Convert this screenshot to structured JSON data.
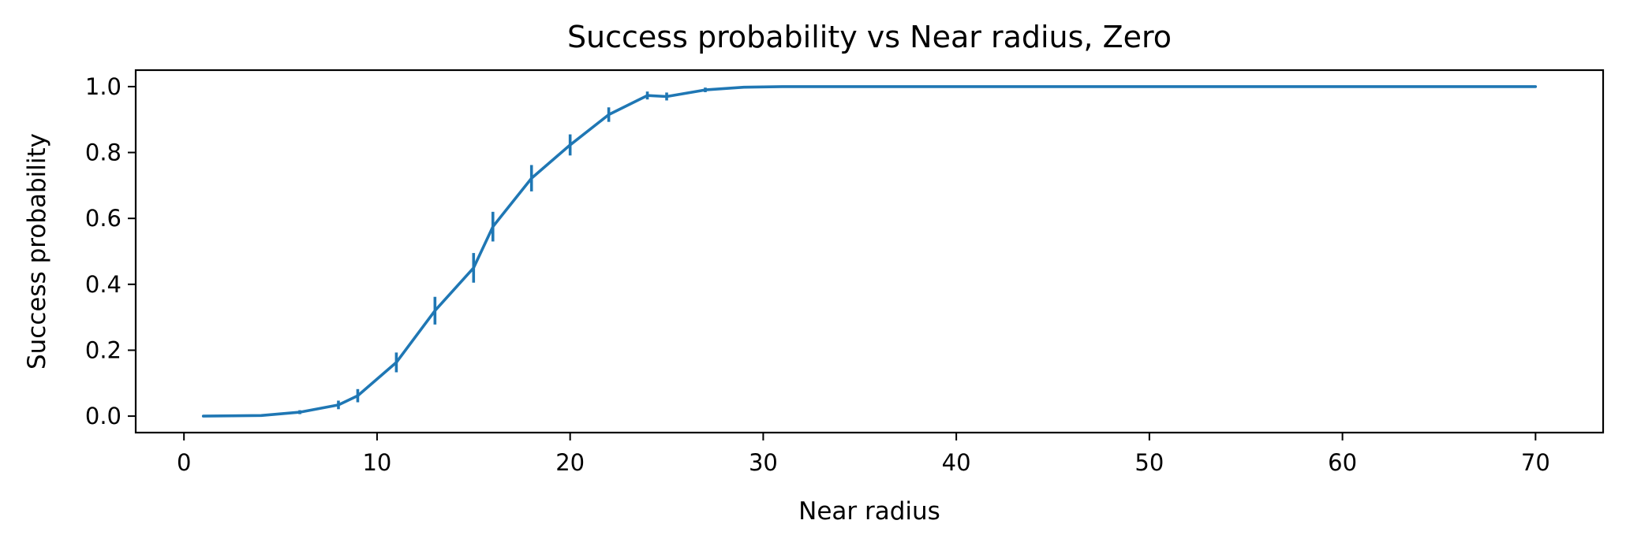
{
  "chart_data": {
    "type": "line",
    "title": "Success probability vs Near radius, Zero",
    "xlabel": "Near radius",
    "ylabel": "Success probability",
    "xlim": [
      -2.5,
      73.5
    ],
    "ylim": [
      -0.05,
      1.05
    ],
    "xticks": [
      0,
      10,
      20,
      30,
      40,
      50,
      60,
      70
    ],
    "yticks": [
      0.0,
      0.2,
      0.4,
      0.6,
      0.8,
      1.0
    ],
    "xtick_labels": [
      "0",
      "10",
      "20",
      "30",
      "40",
      "50",
      "60",
      "70"
    ],
    "ytick_labels": [
      "0.0",
      "0.2",
      "0.4",
      "0.6",
      "0.8",
      "1.0"
    ],
    "grid": false,
    "legend": "none",
    "series": [
      {
        "color": "#1f77b4",
        "x": [
          1,
          4,
          6,
          8,
          9,
          11,
          13,
          15,
          16,
          18,
          20,
          22,
          24,
          25,
          27,
          29,
          31,
          70
        ],
        "y": [
          0.0,
          0.002,
          0.012,
          0.034,
          0.062,
          0.163,
          0.32,
          0.45,
          0.575,
          0.722,
          0.823,
          0.915,
          0.973,
          0.97,
          0.99,
          0.998,
          1.0,
          1.0
        ],
        "yerr": [
          0.0,
          0.003,
          0.006,
          0.013,
          0.02,
          0.03,
          0.042,
          0.045,
          0.045,
          0.04,
          0.032,
          0.022,
          0.012,
          0.012,
          0.007,
          0.003,
          0.0,
          0.0
        ]
      }
    ]
  }
}
